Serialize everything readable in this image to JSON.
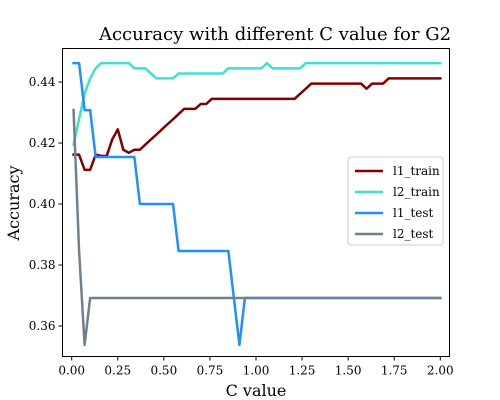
{
  "chart_data": {
    "type": "line",
    "title": "Accuracy with different C value for G2",
    "xlabel": "C value",
    "ylabel": "Accuracy",
    "xlim": [
      -0.05,
      2.05
    ],
    "ylim": [
      0.35,
      0.451
    ],
    "xticks": [
      0.0,
      0.25,
      0.5,
      0.75,
      1.0,
      1.25,
      1.5,
      1.75,
      2.0
    ],
    "xtick_labels": [
      "0.00",
      "0.25",
      "0.50",
      "0.75",
      "1.00",
      "1.25",
      "1.50",
      "1.75",
      "2.00"
    ],
    "yticks": [
      0.36,
      0.38,
      0.4,
      0.42,
      0.44
    ],
    "ytick_labels": [
      "0.36",
      "0.38",
      "0.40",
      "0.42",
      "0.44"
    ],
    "grid": false,
    "legend_position": "center-right",
    "x": [
      0.01,
      0.04,
      0.07,
      0.1,
      0.13,
      0.16,
      0.19,
      0.22,
      0.25,
      0.28,
      0.31,
      0.34,
      0.37,
      0.4,
      0.43,
      0.46,
      0.49,
      0.52,
      0.55,
      0.58,
      0.61,
      0.64,
      0.67,
      0.7,
      0.73,
      0.76,
      0.79,
      0.82,
      0.85,
      0.88,
      0.91,
      0.94,
      0.97,
      1.0,
      1.03,
      1.06,
      1.09,
      1.12,
      1.15,
      1.18,
      1.21,
      1.24,
      1.27,
      1.3,
      1.33,
      1.36,
      1.39,
      1.42,
      1.45,
      1.48,
      1.51,
      1.54,
      1.57,
      1.6,
      1.63,
      1.66,
      1.69,
      1.72,
      1.75,
      1.78,
      1.81,
      1.84,
      1.87,
      1.9,
      1.93,
      1.96,
      1.99,
      2.0
    ],
    "series": [
      {
        "name": "l1_train",
        "color": "#800000",
        "values": [
          0.4162,
          0.4162,
          0.4112,
          0.4112,
          0.4162,
          0.4158,
          0.4158,
          0.4212,
          0.4245,
          0.4178,
          0.4168,
          0.4178,
          0.4178,
          0.4195,
          0.4212,
          0.4228,
          0.4245,
          0.4262,
          0.4278,
          0.4295,
          0.4312,
          0.4312,
          0.4312,
          0.4328,
          0.4328,
          0.4345,
          0.4345,
          0.4345,
          0.4345,
          0.4345,
          0.4345,
          0.4345,
          0.4345,
          0.4345,
          0.4345,
          0.4345,
          0.4345,
          0.4345,
          0.4345,
          0.4345,
          0.4345,
          0.4362,
          0.4378,
          0.4395,
          0.4395,
          0.4395,
          0.4395,
          0.4395,
          0.4395,
          0.4395,
          0.4395,
          0.4395,
          0.4395,
          0.4378,
          0.4395,
          0.4395,
          0.4395,
          0.4412,
          0.4412,
          0.4412,
          0.4412,
          0.4412,
          0.4412,
          0.4412,
          0.4412,
          0.4412,
          0.4412,
          0.4412
        ]
      },
      {
        "name": "l2_train",
        "color": "#40e0d0",
        "values": [
          0.4195,
          0.4278,
          0.4362,
          0.4412,
          0.4445,
          0.4462,
          0.4462,
          0.4462,
          0.4462,
          0.4462,
          0.4462,
          0.4445,
          0.4445,
          0.4445,
          0.4428,
          0.4412,
          0.4412,
          0.4412,
          0.4412,
          0.4428,
          0.4428,
          0.4428,
          0.4428,
          0.4428,
          0.4428,
          0.4428,
          0.4428,
          0.4428,
          0.4445,
          0.4445,
          0.4445,
          0.4445,
          0.4445,
          0.4445,
          0.4445,
          0.4462,
          0.4445,
          0.4445,
          0.4445,
          0.4445,
          0.4445,
          0.4445,
          0.4462,
          0.4462,
          0.4462,
          0.4462,
          0.4462,
          0.4462,
          0.4462,
          0.4462,
          0.4462,
          0.4462,
          0.4462,
          0.4462,
          0.4462,
          0.4462,
          0.4462,
          0.4462,
          0.4462,
          0.4462,
          0.4462,
          0.4462,
          0.4462,
          0.4462,
          0.4462,
          0.4462,
          0.4462,
          0.4462
        ]
      },
      {
        "name": "l1_test",
        "color": "#1e90ff",
        "values": [
          0.4462,
          0.4462,
          0.4308,
          0.4308,
          0.4154,
          0.4154,
          0.4154,
          0.4154,
          0.4154,
          0.4154,
          0.4154,
          0.4154,
          0.4,
          0.4,
          0.4,
          0.4,
          0.4,
          0.4,
          0.4,
          0.3846,
          0.3846,
          0.3846,
          0.3846,
          0.3846,
          0.3846,
          0.3846,
          0.3846,
          0.3846,
          0.3846,
          0.3692,
          0.3538,
          0.3692,
          0.3692,
          0.3692,
          0.3692,
          0.3692,
          0.3692,
          0.3692,
          0.3692,
          0.3692,
          0.3692,
          0.3692,
          0.3692,
          0.3692,
          0.3692,
          0.3692,
          0.3692,
          0.3692,
          0.3692,
          0.3692,
          0.3692,
          0.3692,
          0.3692,
          0.3692,
          0.3692,
          0.3692,
          0.3692,
          0.3692,
          0.3692,
          0.3692,
          0.3692,
          0.3692,
          0.3692,
          0.3692,
          0.3692,
          0.3692,
          0.3692,
          0.3692
        ]
      },
      {
        "name": "l2_test",
        "color": "#708090",
        "values": [
          0.4308,
          0.3846,
          0.3538,
          0.3692,
          0.3692,
          0.3692,
          0.3692,
          0.3692,
          0.3692,
          0.3692,
          0.3692,
          0.3692,
          0.3692,
          0.3692,
          0.3692,
          0.3692,
          0.3692,
          0.3692,
          0.3692,
          0.3692,
          0.3692,
          0.3692,
          0.3692,
          0.3692,
          0.3692,
          0.3692,
          0.3692,
          0.3692,
          0.3692,
          0.3692,
          0.3692,
          0.3692,
          0.3692,
          0.3692,
          0.3692,
          0.3692,
          0.3692,
          0.3692,
          0.3692,
          0.3692,
          0.3692,
          0.3692,
          0.3692,
          0.3692,
          0.3692,
          0.3692,
          0.3692,
          0.3692,
          0.3692,
          0.3692,
          0.3692,
          0.3692,
          0.3692,
          0.3692,
          0.3692,
          0.3692,
          0.3692,
          0.3692,
          0.3692,
          0.3692,
          0.3692,
          0.3692,
          0.3692,
          0.3692,
          0.3692,
          0.3692,
          0.3692,
          0.3692
        ]
      }
    ]
  }
}
